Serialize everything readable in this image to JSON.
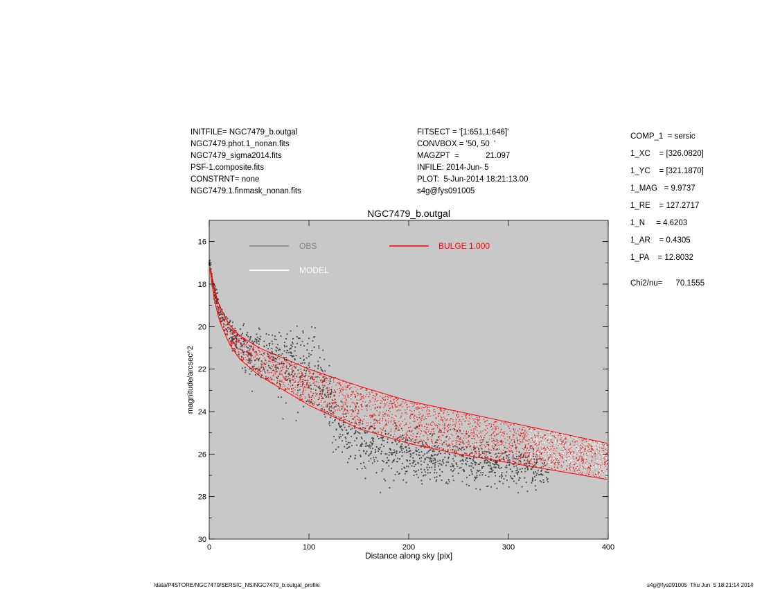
{
  "header_left": [
    "INITFILE= NGC7479_b.outgal",
    "NGC7479.phot.1_nonan.fits",
    "NGC7479_sigma2014.fits",
    "PSF-1.composite.fits",
    "CONSTRNT= none",
    "NGC7479.1.finmask_nonan.fits"
  ],
  "header_mid": [
    "FITSECT = '[1:651,1:646]'",
    "CONVBOX = '50, 50  '",
    "MAGZPT  =            21.097",
    "INFILE: 2014-Jun- 5",
    "PLOT:  5-Jun-2014 18:21:13.00",
    "s4g@fys091005"
  ],
  "params": [
    "COMP_1  = sersic",
    "1_XC    = [326.0820]",
    "1_YC    = [321.1870]",
    "1_MAG   = 9.9737",
    "1_RE    = 127.2717",
    "1_N     = 4.6203",
    "1_AR    = 0.4305",
    "1_PA    = 12.8032"
  ],
  "chi2": "Chi2/nu=      70.1555",
  "footer_left": "/data/P4STORE/NGC7479/SERSIC_NS/NGC7479_b.outgal_profile",
  "footer_right": "s4g@fys091005  Thu Jun  5 18:21:14 2014",
  "colors": {
    "plot_bg": "#c8c8c8",
    "obs": "#404040",
    "obs_legend": "#808080",
    "model": "#ffffff",
    "bulge": "#ff0000"
  },
  "chart_data": {
    "type": "scatter",
    "title": "NGC7479_b.outgal",
    "xlabel": "Distance along sky [pix]",
    "ylabel": "magnitude/arcsec^2",
    "xlim": [
      0,
      400
    ],
    "ylim": [
      30,
      15
    ],
    "y_inverted": true,
    "xticks": [
      0,
      100,
      200,
      300,
      400
    ],
    "yticks": [
      16,
      18,
      20,
      22,
      24,
      26,
      28,
      30
    ],
    "grid": false,
    "legend": [
      {
        "name": "OBS",
        "color": "#808080"
      },
      {
        "name": "MODEL",
        "color": "#ffffff"
      },
      {
        "name": "BULGE  1.000",
        "color": "#ff0000"
      }
    ],
    "series": [
      {
        "name": "OBS",
        "kind": "scatter-cloud",
        "x": [
          1,
          2,
          5,
          10,
          20,
          30,
          40,
          50,
          60,
          70,
          80,
          90,
          100,
          110,
          120,
          130,
          140,
          150,
          160,
          170,
          180,
          200,
          220,
          240,
          260,
          280,
          300,
          320,
          340
        ],
        "y_center": [
          17.0,
          17.5,
          18.3,
          19.2,
          20.3,
          20.9,
          21.2,
          21.4,
          21.5,
          21.6,
          21.7,
          21.8,
          22.0,
          22.5,
          23.3,
          24.5,
          25.0,
          25.4,
          25.6,
          25.8,
          25.9,
          26.0,
          26.1,
          26.2,
          26.3,
          26.4,
          26.5,
          26.6,
          26.7
        ],
        "y_spread": [
          0.1,
          0.2,
          0.3,
          0.4,
          0.6,
          0.9,
          1.1,
          1.3,
          1.4,
          1.5,
          1.6,
          1.6,
          1.6,
          1.5,
          1.4,
          1.3,
          1.3,
          1.3,
          1.3,
          1.3,
          1.3,
          1.2,
          1.1,
          1.0,
          1.0,
          0.9,
          0.9,
          0.8,
          0.8
        ]
      },
      {
        "name": "BULGE  1.000",
        "kind": "band",
        "x": [
          1,
          5,
          10,
          20,
          30,
          50,
          75,
          100,
          150,
          200,
          250,
          300,
          350,
          400
        ],
        "y_upper": [
          17.2,
          18.2,
          19.0,
          19.9,
          20.4,
          21.0,
          21.5,
          22.0,
          22.8,
          23.5,
          24.0,
          24.5,
          25.0,
          25.5
        ],
        "y_lower": [
          17.4,
          18.7,
          19.7,
          20.8,
          21.5,
          22.3,
          23.0,
          23.7,
          24.8,
          25.5,
          26.0,
          26.4,
          26.8,
          27.2
        ]
      },
      {
        "name": "MODEL",
        "kind": "band",
        "x": [
          320,
          340,
          360,
          380,
          400
        ],
        "y_upper": [
          24.7,
          24.9,
          25.1,
          25.3,
          25.5
        ],
        "y_lower": [
          26.3,
          26.5,
          26.7,
          26.9,
          27.1
        ]
      }
    ]
  }
}
